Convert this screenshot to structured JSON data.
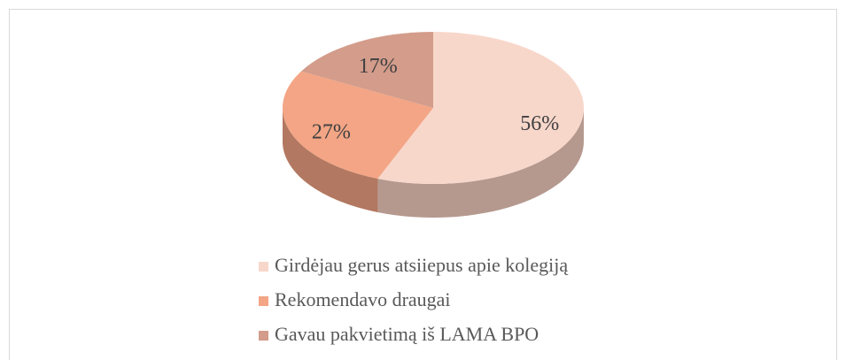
{
  "chart_data": {
    "type": "pie",
    "categories": [
      "Girdėjau gerus atsiiepus apie kolegiją",
      "Rekomendavo draugai",
      "Gavau pakvietimą iš LAMA BPO"
    ],
    "values": [
      56,
      27,
      17
    ],
    "value_labels": [
      "56%",
      "27%",
      "17%"
    ],
    "colors": [
      "#f8d7cb",
      "#f3a585",
      "#d39c8b"
    ],
    "legend": "bottom"
  }
}
